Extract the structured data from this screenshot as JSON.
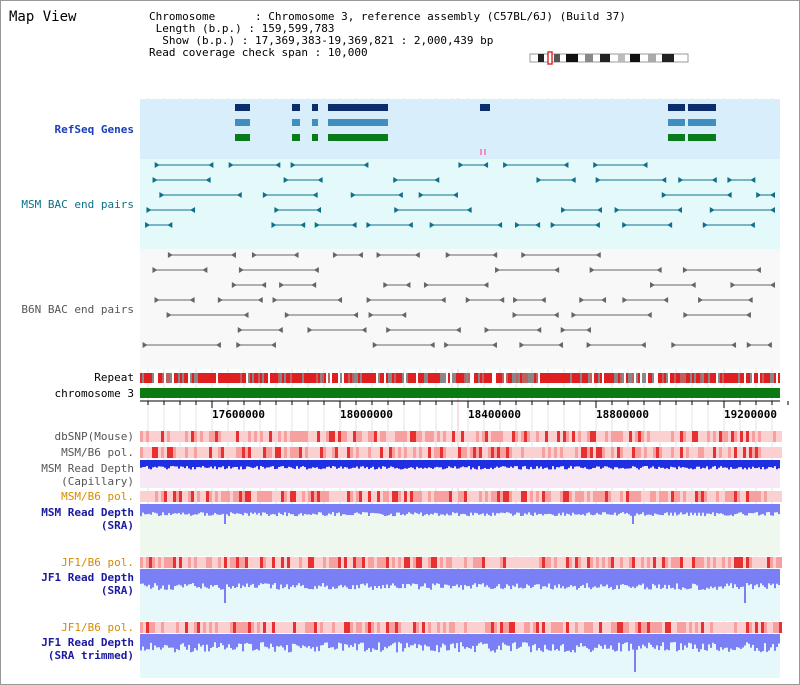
{
  "page": {
    "title": "Map View"
  },
  "header": {
    "chromosome_label": "Chromosome",
    "chromosome_value": "Chromosome 3, reference assembly (C57BL/6J) (Build 37)",
    "length_label": "Length (b.p.)",
    "length_value": "159,599,783",
    "show_label": "Show (b.p.)",
    "show_value": "17,369,383-19,369,821 : 2,000,439 bp",
    "coverage_label": "Read coverage check span",
    "coverage_value": "10,000"
  },
  "tracks": {
    "refseq": "RefSeq Genes",
    "msm_bac": "MSM BAC end pairs",
    "b6n_bac": "B6N BAC end pairs",
    "repeat": "Repeat",
    "chromosome": "chromosome 3",
    "dbsnp": "dbSNP(Mouse)",
    "msm_b6_pol": "MSM/B6 pol.",
    "msm_read_depth_cap_1": "MSM Read Depth",
    "msm_read_depth_cap_2": "(Capillary)",
    "msm_b6_pol_2": "MSM/B6 pol.",
    "msm_read_depth_sra_1": "MSM Read Depth",
    "msm_read_depth_sra_2": "(SRA)",
    "jf1_b6_pol": "JF1/B6 pol.",
    "jf1_read_depth_sra_1": "JF1 Read Depth",
    "jf1_read_depth_sra_2": "(SRA)",
    "jf1_b6_pol_2": "JF1/B6 pol.",
    "jf1_read_depth_trim_1": "JF1 Read Depth",
    "jf1_read_depth_trim_2": "(SRA trimmed)"
  },
  "axis": {
    "ticks": [
      "17600000",
      "18000000",
      "18400000",
      "18800000",
      "19200000"
    ]
  },
  "colors": {
    "refseq_bg": "#d8eefa",
    "msm_bac_bg": "#e4fafa",
    "b6n_bac_bg": "#f8f8f8",
    "gene_dark": "#0b2d6b",
    "gene_mid": "#3e8fbf",
    "gene_green": "#0a7a1a",
    "teal": "#10708c",
    "gray": "#666666",
    "repeat_red": "#e02020",
    "chrom_green": "#0b7a10",
    "pol_pink": "#f6a0a0",
    "depth_blue": "#1f2ee0",
    "depth_light": "#7b7ff5"
  }
}
